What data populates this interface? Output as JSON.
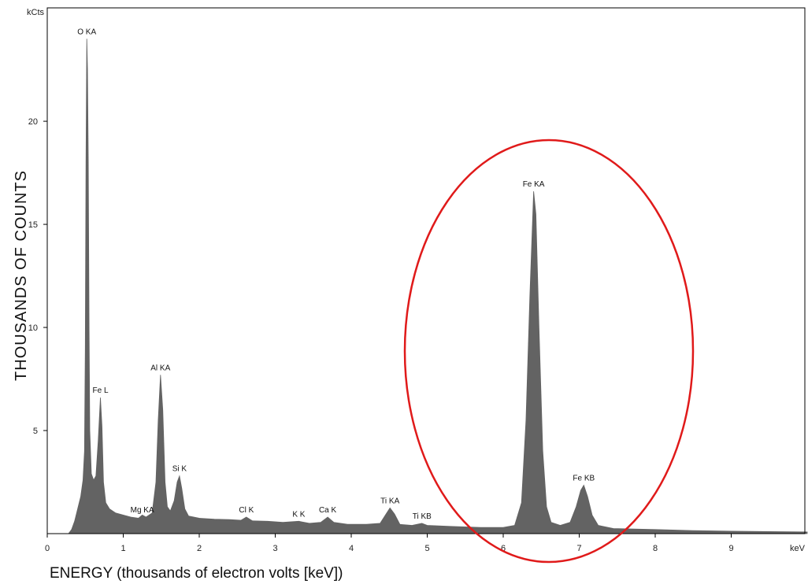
{
  "chart_data": {
    "type": "area",
    "x_unit": "keV",
    "y_unit": "kCts",
    "xlabel": "ENERGY (thousands of electron volts [keV])",
    "ylabel": "THOUSANDS OF COUNTS",
    "xlim": [
      0,
      10
    ],
    "ylim": [
      0,
      25.5
    ],
    "x_ticks": [
      0,
      1,
      2,
      3,
      4,
      5,
      6,
      7,
      8,
      9
    ],
    "y_ticks": [
      5,
      10,
      15,
      20
    ],
    "grid": false,
    "fill_color": "#636363",
    "highlight_color": "#e01a1a",
    "highlight": {
      "shape": "ellipse",
      "encloses": [
        "Fe KA",
        "Fe KB"
      ]
    },
    "peaks": [
      {
        "label": "O KA",
        "x": 0.52,
        "y": 24.0
      },
      {
        "label": "Fe L",
        "x": 0.7,
        "y": 6.6
      },
      {
        "label": "Mg KA",
        "x": 1.25,
        "y": 0.8
      },
      {
        "label": "Al KA",
        "x": 1.49,
        "y": 7.7
      },
      {
        "label": "Si K",
        "x": 1.74,
        "y": 2.8
      },
      {
        "label": "Cl K",
        "x": 2.62,
        "y": 0.8
      },
      {
        "label": "K K",
        "x": 3.31,
        "y": 0.6
      },
      {
        "label": "Ca K",
        "x": 3.69,
        "y": 0.8
      },
      {
        "label": "Ti KA",
        "x": 4.51,
        "y": 1.25
      },
      {
        "label": "Ti KB",
        "x": 4.93,
        "y": 0.5
      },
      {
        "label": "Fe KA",
        "x": 6.4,
        "y": 16.6
      },
      {
        "label": "Fe KB",
        "x": 7.06,
        "y": 2.35
      }
    ],
    "spectrum": [
      [
        0.28,
        0.0
      ],
      [
        0.32,
        0.2
      ],
      [
        0.36,
        0.6
      ],
      [
        0.4,
        1.2
      ],
      [
        0.44,
        1.8
      ],
      [
        0.47,
        2.6
      ],
      [
        0.49,
        4.0
      ],
      [
        0.5,
        9.0
      ],
      [
        0.51,
        18.0
      ],
      [
        0.52,
        24.0
      ],
      [
        0.53,
        22.5
      ],
      [
        0.54,
        18.0
      ],
      [
        0.55,
        10.0
      ],
      [
        0.56,
        5.0
      ],
      [
        0.58,
        2.9
      ],
      [
        0.61,
        2.6
      ],
      [
        0.64,
        2.8
      ],
      [
        0.67,
        4.5
      ],
      [
        0.7,
        6.6
      ],
      [
        0.72,
        5.2
      ],
      [
        0.74,
        2.5
      ],
      [
        0.77,
        1.5
      ],
      [
        0.82,
        1.2
      ],
      [
        0.9,
        1.0
      ],
      [
        1.0,
        0.9
      ],
      [
        1.1,
        0.8
      ],
      [
        1.2,
        0.75
      ],
      [
        1.25,
        0.9
      ],
      [
        1.3,
        0.8
      ],
      [
        1.38,
        1.0
      ],
      [
        1.43,
        2.5
      ],
      [
        1.46,
        5.5
      ],
      [
        1.49,
        7.7
      ],
      [
        1.52,
        6.0
      ],
      [
        1.55,
        2.5
      ],
      [
        1.58,
        1.3
      ],
      [
        1.62,
        1.1
      ],
      [
        1.67,
        1.6
      ],
      [
        1.71,
        2.5
      ],
      [
        1.74,
        2.8
      ],
      [
        1.77,
        2.2
      ],
      [
        1.81,
        1.2
      ],
      [
        1.86,
        0.85
      ],
      [
        2.0,
        0.75
      ],
      [
        2.2,
        0.7
      ],
      [
        2.4,
        0.68
      ],
      [
        2.55,
        0.65
      ],
      [
        2.62,
        0.8
      ],
      [
        2.7,
        0.62
      ],
      [
        2.9,
        0.6
      ],
      [
        3.1,
        0.55
      ],
      [
        3.31,
        0.6
      ],
      [
        3.45,
        0.5
      ],
      [
        3.6,
        0.55
      ],
      [
        3.69,
        0.8
      ],
      [
        3.77,
        0.55
      ],
      [
        3.95,
        0.45
      ],
      [
        4.2,
        0.45
      ],
      [
        4.38,
        0.5
      ],
      [
        4.45,
        0.9
      ],
      [
        4.51,
        1.25
      ],
      [
        4.57,
        0.95
      ],
      [
        4.64,
        0.45
      ],
      [
        4.8,
        0.4
      ],
      [
        4.93,
        0.5
      ],
      [
        5.0,
        0.4
      ],
      [
        5.3,
        0.35
      ],
      [
        5.7,
        0.3
      ],
      [
        6.0,
        0.3
      ],
      [
        6.15,
        0.4
      ],
      [
        6.24,
        1.5
      ],
      [
        6.3,
        5.5
      ],
      [
        6.35,
        11.5
      ],
      [
        6.4,
        16.6
      ],
      [
        6.43,
        15.5
      ],
      [
        6.47,
        10.0
      ],
      [
        6.52,
        4.0
      ],
      [
        6.57,
        1.3
      ],
      [
        6.63,
        0.55
      ],
      [
        6.75,
        0.4
      ],
      [
        6.88,
        0.55
      ],
      [
        6.96,
        1.3
      ],
      [
        7.02,
        2.1
      ],
      [
        7.06,
        2.35
      ],
      [
        7.11,
        1.8
      ],
      [
        7.17,
        0.9
      ],
      [
        7.25,
        0.4
      ],
      [
        7.45,
        0.25
      ],
      [
        8.0,
        0.2
      ],
      [
        8.5,
        0.15
      ],
      [
        9.0,
        0.12
      ],
      [
        9.5,
        0.1
      ],
      [
        10.0,
        0.08
      ]
    ]
  }
}
